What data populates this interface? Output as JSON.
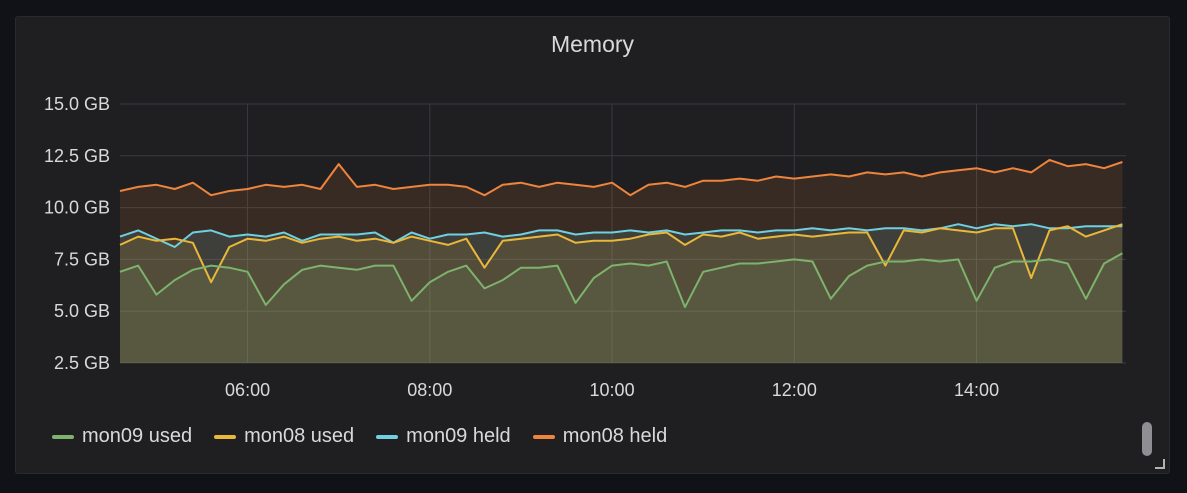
{
  "panel": {
    "title": "Memory"
  },
  "colors": {
    "grid": "#3a3b3f",
    "text": "#d8d9da"
  },
  "chart_data": {
    "type": "area",
    "title": "Memory",
    "xlabel": "",
    "ylabel": "",
    "x_ticks": [
      "06:00",
      "08:00",
      "10:00",
      "12:00",
      "14:00"
    ],
    "x_tick_hours": [
      6,
      8,
      10,
      12,
      14
    ],
    "y_ticks": [
      "2.5 GB",
      "5.0 GB",
      "7.5 GB",
      "10.0 GB",
      "12.5 GB",
      "15.0 GB"
    ],
    "y_tick_values": [
      2.5,
      5.0,
      7.5,
      10.0,
      12.5,
      15.0
    ],
    "xlim_hours": [
      4.6,
      15.64
    ],
    "ylim": [
      2.5,
      15.0
    ],
    "legend_position": "bottom-left",
    "grid": true,
    "x_hours": [
      4.6,
      4.8,
      5.0,
      5.2,
      5.4,
      5.6,
      5.8,
      6.0,
      6.2,
      6.4,
      6.6,
      6.8,
      7.0,
      7.2,
      7.4,
      7.6,
      7.8,
      8.0,
      8.2,
      8.4,
      8.6,
      8.8,
      9.0,
      9.2,
      9.4,
      9.6,
      9.8,
      10.0,
      10.2,
      10.4,
      10.6,
      10.8,
      11.0,
      11.2,
      11.4,
      11.6,
      11.8,
      12.0,
      12.2,
      12.4,
      12.6,
      12.8,
      13.0,
      13.2,
      13.4,
      13.6,
      13.8,
      14.0,
      14.2,
      14.4,
      14.6,
      14.8,
      15.0,
      15.2,
      15.4,
      15.6
    ],
    "series": [
      {
        "name": "mon09 used",
        "color": "#7eb26d",
        "values": [
          6.9,
          7.2,
          5.8,
          6.5,
          7.0,
          7.2,
          7.1,
          6.9,
          5.3,
          6.3,
          7.0,
          7.2,
          7.1,
          7.0,
          7.2,
          7.2,
          5.5,
          6.4,
          6.9,
          7.2,
          6.1,
          6.5,
          7.1,
          7.1,
          7.2,
          5.4,
          6.6,
          7.2,
          7.3,
          7.2,
          7.4,
          5.2,
          6.9,
          7.1,
          7.3,
          7.3,
          7.4,
          7.5,
          7.4,
          5.6,
          6.7,
          7.2,
          7.4,
          7.4,
          7.5,
          7.4,
          7.5,
          5.5,
          7.1,
          7.4,
          7.4,
          7.5,
          7.3,
          5.6,
          7.3,
          7.8
        ]
      },
      {
        "name": "mon08 used",
        "color": "#eab839",
        "values": [
          8.2,
          8.6,
          8.4,
          8.5,
          8.3,
          6.4,
          8.1,
          8.5,
          8.4,
          8.6,
          8.3,
          8.5,
          8.6,
          8.4,
          8.5,
          8.3,
          8.6,
          8.4,
          8.2,
          8.5,
          7.1,
          8.4,
          8.5,
          8.6,
          8.7,
          8.3,
          8.4,
          8.4,
          8.5,
          8.7,
          8.8,
          8.2,
          8.7,
          8.6,
          8.8,
          8.5,
          8.6,
          8.7,
          8.6,
          8.7,
          8.8,
          8.8,
          7.2,
          8.9,
          8.8,
          9.0,
          8.9,
          8.8,
          9.0,
          9.0,
          6.6,
          8.9,
          9.1,
          8.6,
          8.9,
          9.2
        ]
      },
      {
        "name": "mon09 held",
        "color": "#6ed0e0",
        "values": [
          8.6,
          8.9,
          8.5,
          8.1,
          8.8,
          8.9,
          8.6,
          8.7,
          8.6,
          8.8,
          8.4,
          8.7,
          8.7,
          8.7,
          8.8,
          8.3,
          8.8,
          8.5,
          8.7,
          8.7,
          8.8,
          8.6,
          8.7,
          8.9,
          8.9,
          8.7,
          8.8,
          8.8,
          8.9,
          8.8,
          8.9,
          8.7,
          8.8,
          8.9,
          8.9,
          8.8,
          8.9,
          8.9,
          9.0,
          8.9,
          9.0,
          8.9,
          9.0,
          9.0,
          8.9,
          9.0,
          9.2,
          9.0,
          9.2,
          9.1,
          9.2,
          9.0,
          9.0,
          9.1,
          9.1,
          9.1
        ]
      },
      {
        "name": "mon08 held",
        "color": "#ef843c",
        "values": [
          10.8,
          11.0,
          11.1,
          10.9,
          11.2,
          10.6,
          10.8,
          10.9,
          11.1,
          11.0,
          11.1,
          10.9,
          12.1,
          11.0,
          11.1,
          10.9,
          11.0,
          11.1,
          11.1,
          11.0,
          10.6,
          11.1,
          11.2,
          11.0,
          11.2,
          11.1,
          11.0,
          11.2,
          10.6,
          11.1,
          11.2,
          11.0,
          11.3,
          11.3,
          11.4,
          11.3,
          11.5,
          11.4,
          11.5,
          11.6,
          11.5,
          11.7,
          11.6,
          11.7,
          11.5,
          11.7,
          11.8,
          11.9,
          11.7,
          11.9,
          11.7,
          12.3,
          12.0,
          12.1,
          11.9,
          12.2
        ]
      }
    ]
  }
}
